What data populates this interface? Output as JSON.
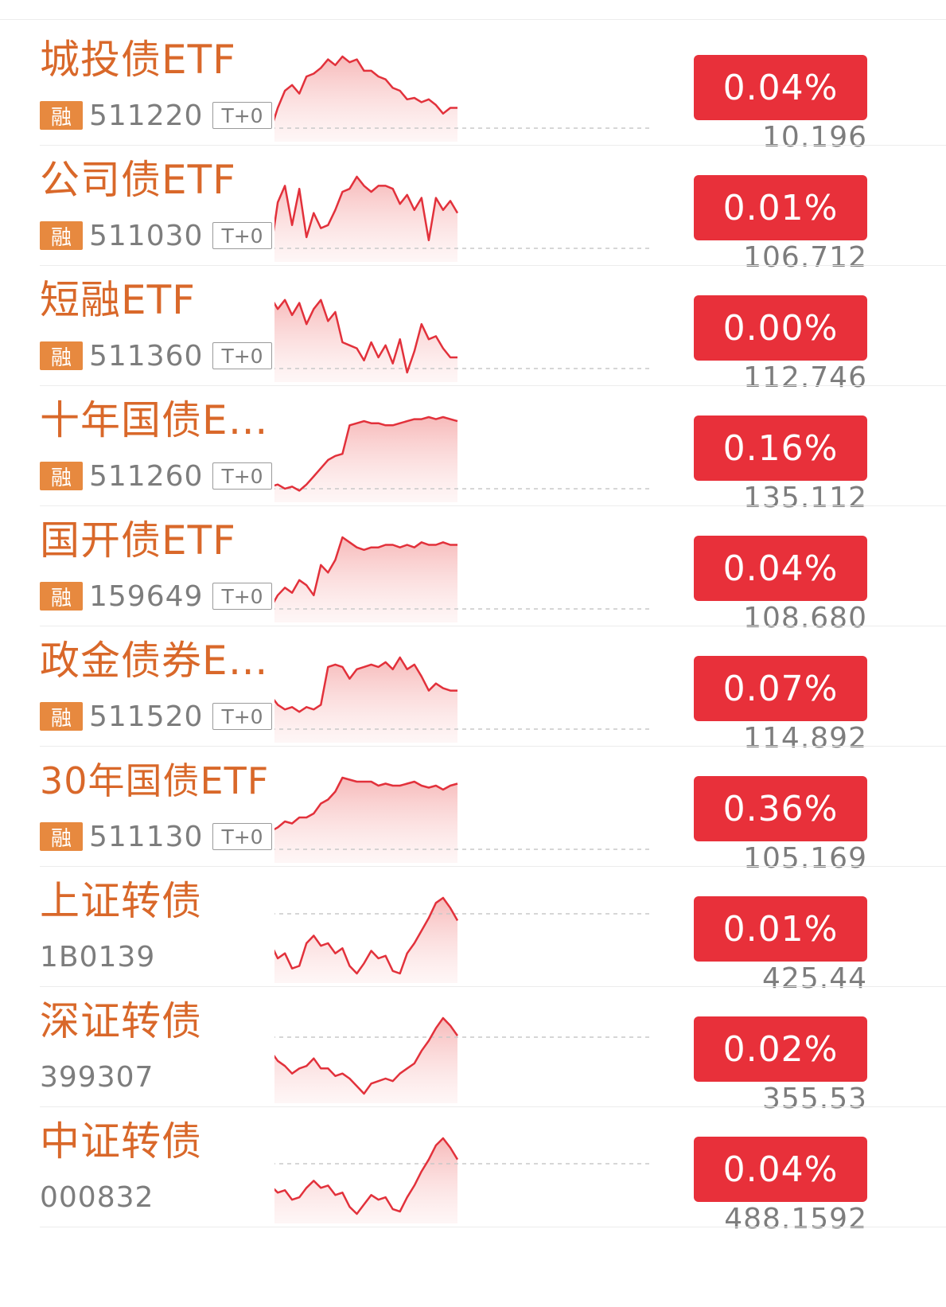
{
  "colors": {
    "name": "#d9682a",
    "up": "#e8303a",
    "badge": "#e7893f",
    "muted": "#7d7d7d"
  },
  "rows": [
    {
      "name": "城投债ETF",
      "badge": "融",
      "code": "511220",
      "tag": "T+0",
      "change": "0.04%",
      "price": "10.196",
      "spark": [
        1,
        2,
        18,
        30,
        34,
        28,
        40,
        42,
        46,
        52,
        48,
        54,
        50,
        52,
        44,
        44,
        40,
        38,
        32,
        30,
        24,
        25,
        22,
        24,
        20,
        14,
        18,
        18
      ]
    },
    {
      "name": "公司债ETF",
      "badge": "融",
      "code": "511030",
      "tag": "T+0",
      "change": "0.01%",
      "price": "106.712",
      "spark": [
        10,
        2,
        35,
        46,
        20,
        44,
        12,
        28,
        18,
        20,
        30,
        42,
        44,
        52,
        46,
        42,
        46,
        46,
        44,
        34,
        40,
        30,
        38,
        10,
        38,
        30,
        36,
        28
      ]
    },
    {
      "name": "短融ETF",
      "badge": "融",
      "code": "511360",
      "tag": "T+0",
      "change": "0.00%",
      "price": "112.746",
      "spark": [
        22,
        52,
        44,
        50,
        40,
        48,
        34,
        44,
        50,
        36,
        42,
        22,
        20,
        18,
        10,
        22,
        12,
        20,
        8,
        24,
        2,
        16,
        34,
        24,
        26,
        18,
        12,
        12
      ]
    },
    {
      "name": "十年国债ETF",
      "badge": "融",
      "code": "511260",
      "tag": "T+0",
      "change": "0.16%",
      "price": "135.112",
      "spark": [
        4,
        10,
        12,
        8,
        10,
        6,
        12,
        20,
        28,
        36,
        40,
        42,
        70,
        72,
        74,
        72,
        72,
        70,
        70,
        72,
        74,
        76,
        76,
        78,
        76,
        78,
        76,
        74
      ]
    },
    {
      "name": "国开债ETF",
      "badge": "融",
      "code": "159649",
      "tag": "T+0",
      "change": "0.04%",
      "price": "108.680",
      "spark": [
        2,
        6,
        16,
        22,
        18,
        28,
        24,
        16,
        40,
        34,
        44,
        62,
        58,
        54,
        52,
        54,
        54,
        56,
        56,
        54,
        56,
        54,
        58,
        56,
        56,
        58,
        56,
        56
      ]
    },
    {
      "name": "政金债券ETF",
      "badge": "融",
      "code": "511520",
      "tag": "T+0",
      "change": "0.07%",
      "price": "114.892",
      "spark": [
        4,
        36,
        28,
        24,
        26,
        22,
        26,
        24,
        28,
        60,
        62,
        60,
        50,
        58,
        60,
        62,
        60,
        64,
        58,
        68,
        58,
        62,
        52,
        40,
        46,
        42,
        40,
        40
      ]
    },
    {
      "name": "30年国债ETF",
      "badge": "融",
      "code": "511130",
      "tag": "T+0",
      "change": "0.36%",
      "price": "105.169",
      "spark": [
        4,
        26,
        30,
        36,
        34,
        40,
        40,
        44,
        54,
        58,
        66,
        80,
        78,
        76,
        76,
        76,
        72,
        74,
        72,
        72,
        74,
        76,
        72,
        70,
        72,
        68,
        72,
        74
      ]
    },
    {
      "name": "上证转债",
      "badge": "",
      "code": "1B0139",
      "tag": "",
      "change": "0.01%",
      "price": "425.44",
      "spark": [
        40,
        30,
        18,
        22,
        10,
        12,
        30,
        36,
        28,
        30,
        22,
        26,
        12,
        6,
        14,
        24,
        18,
        20,
        8,
        6,
        22,
        30,
        40,
        50,
        62,
        66,
        58,
        48
      ]
    },
    {
      "name": "深证转债",
      "badge": "",
      "code": "399307",
      "tag": "",
      "change": "0.02%",
      "price": "355.53",
      "spark": [
        52,
        44,
        36,
        32,
        26,
        30,
        32,
        38,
        30,
        30,
        24,
        26,
        22,
        16,
        10,
        18,
        20,
        22,
        20,
        26,
        30,
        34,
        44,
        52,
        62,
        70,
        64,
        56
      ]
    },
    {
      "name": "中证转债",
      "badge": "",
      "code": "000832",
      "tag": "",
      "change": "0.04%",
      "price": "488.1592",
      "spark": [
        42,
        30,
        24,
        26,
        18,
        20,
        28,
        34,
        28,
        30,
        22,
        24,
        12,
        6,
        14,
        22,
        18,
        20,
        10,
        8,
        20,
        30,
        42,
        52,
        64,
        70,
        62,
        52
      ]
    }
  ]
}
